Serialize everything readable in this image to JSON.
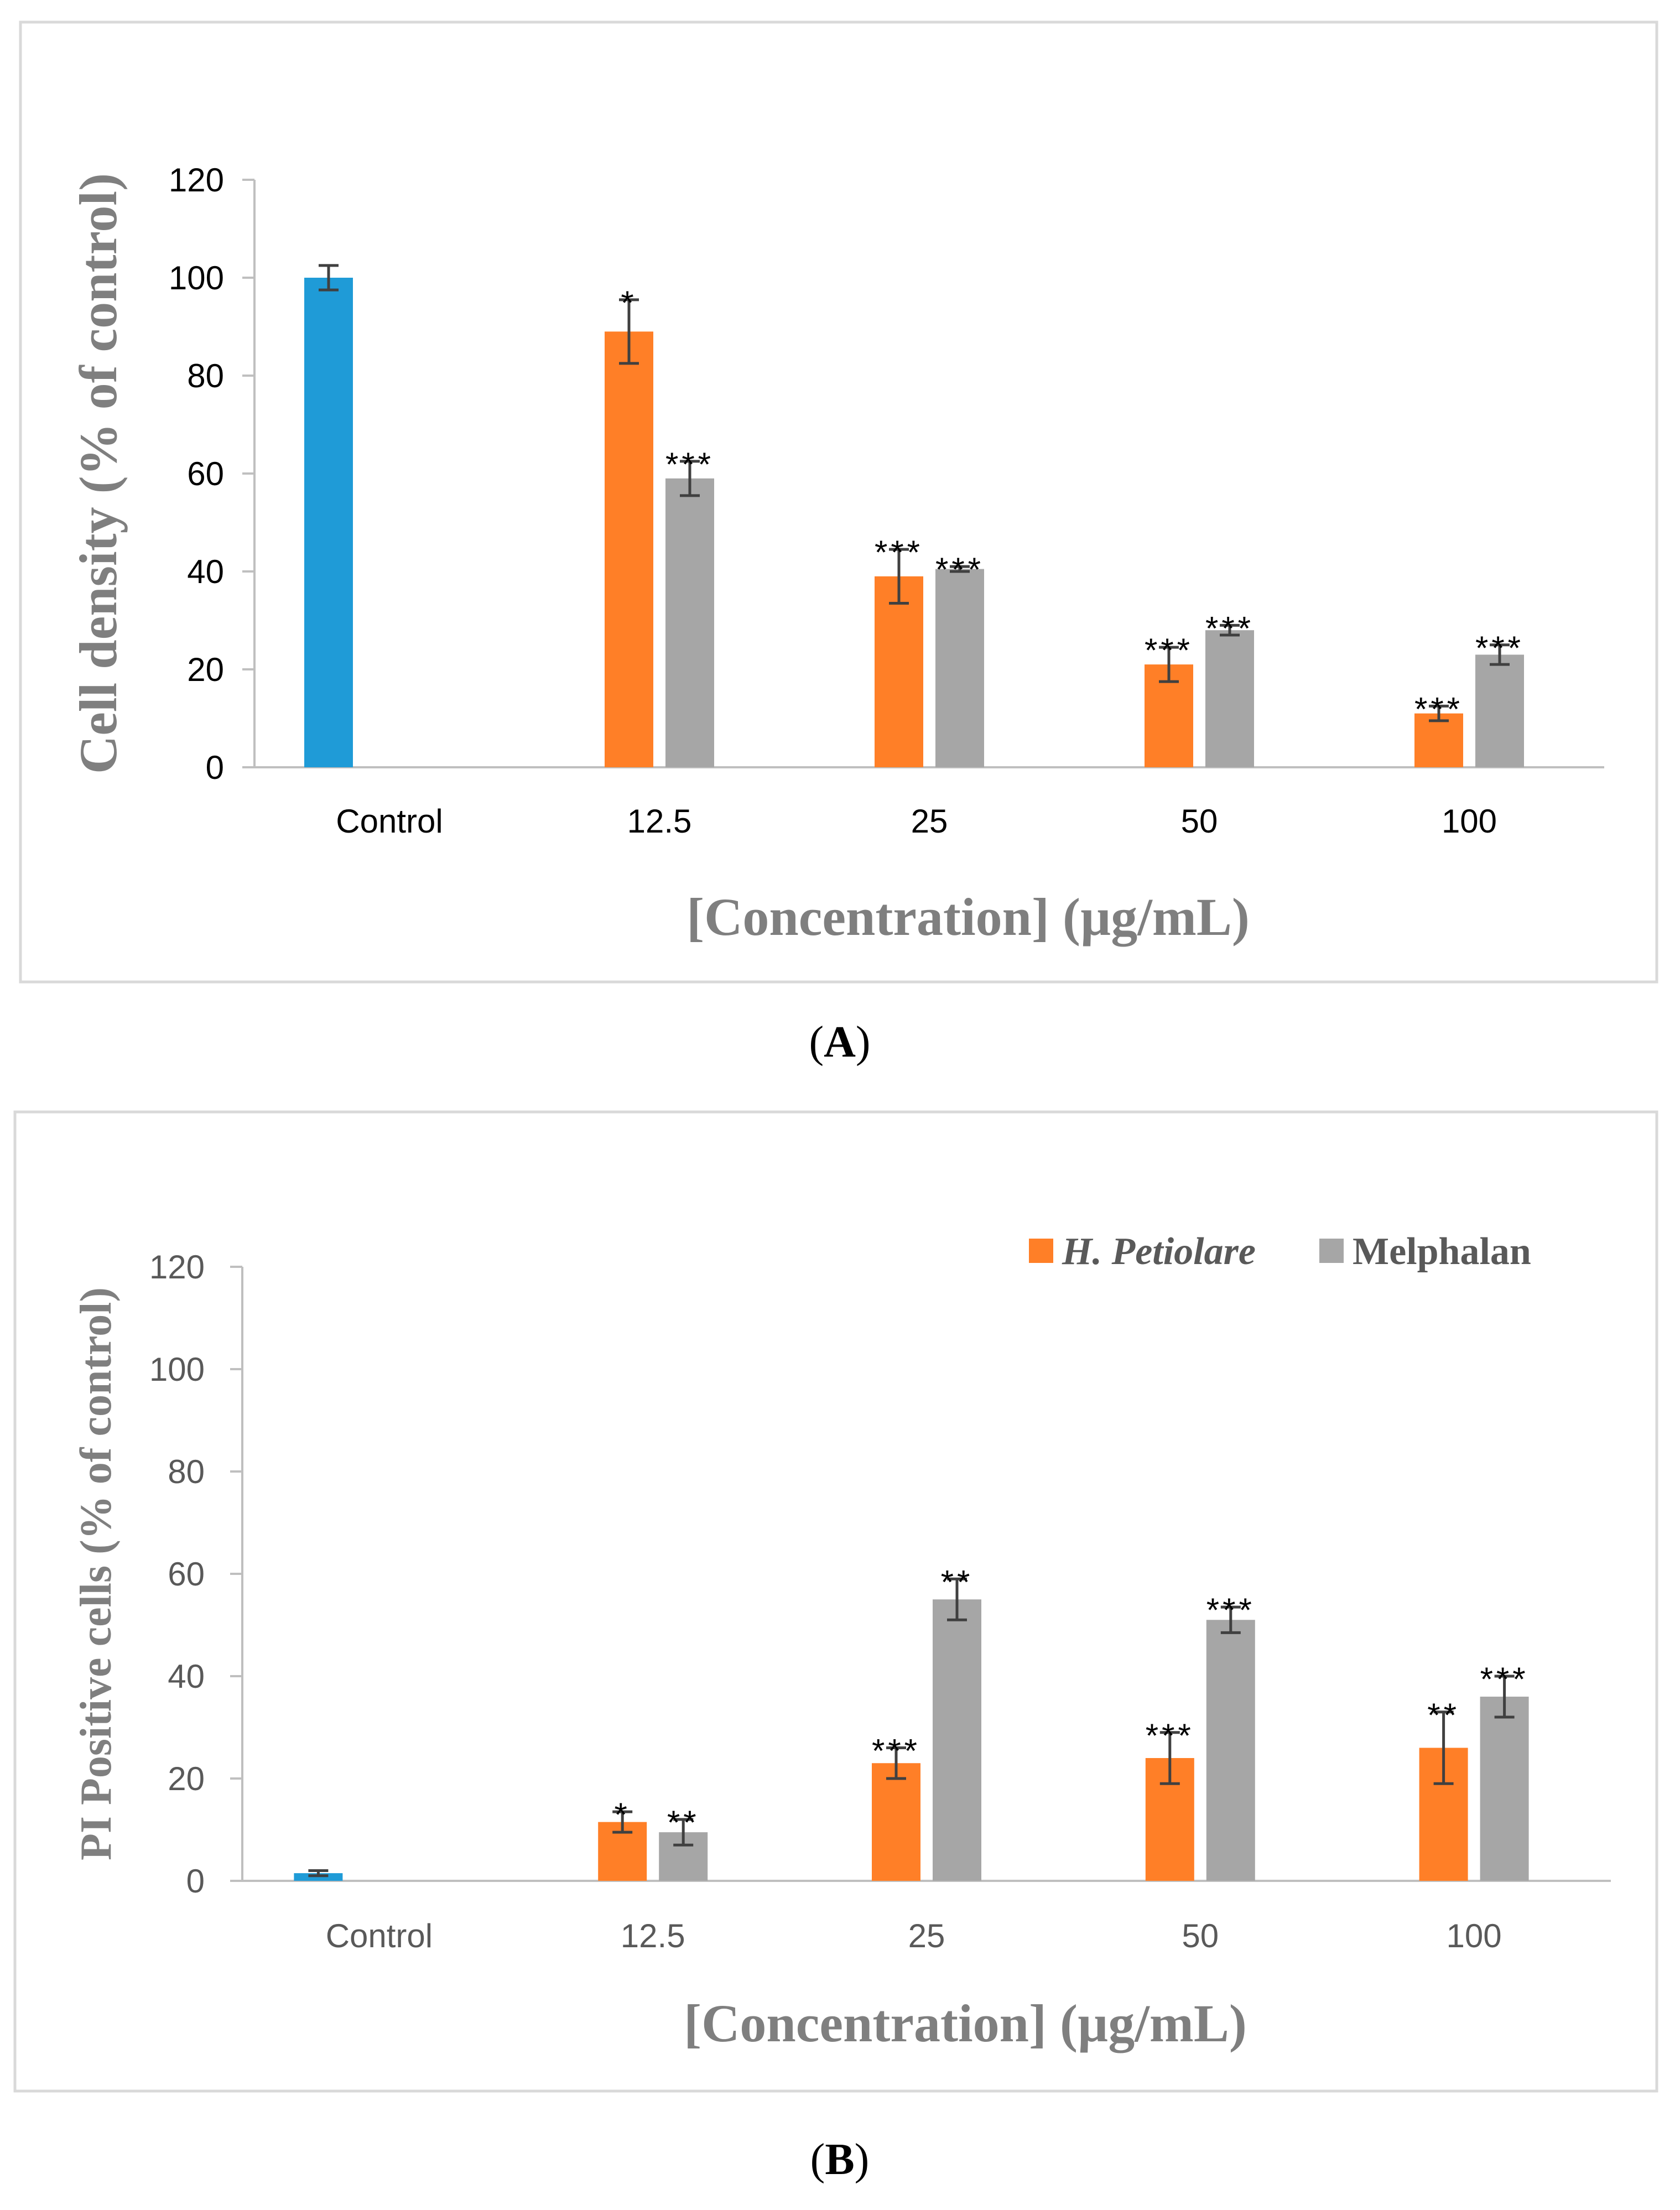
{
  "chart_data": [
    {
      "type": "bar",
      "panel_label": "A",
      "categories": [
        "Control",
        "12.5",
        "25",
        "50",
        "100"
      ],
      "xlabel": "[Concentration]  (µg/mL)",
      "ylabel": "Cell density (% of control)",
      "ylim": [
        0,
        120
      ],
      "yticks": [
        "0",
        "20",
        "40",
        "60",
        "80",
        "100",
        "120"
      ],
      "series": [
        {
          "name": "Control",
          "color": "#1f9bd7",
          "values": [
            100,
            null,
            null,
            null,
            null
          ],
          "errors": [
            2.5,
            null,
            null,
            null,
            null
          ],
          "sig": [
            "",
            "",
            "",
            "",
            ""
          ]
        },
        {
          "name": "H. Petiolare",
          "color": "#ff7f27",
          "values": [
            null,
            89,
            39,
            21,
            11
          ],
          "errors": [
            null,
            6.5,
            5.5,
            3.5,
            1.5
          ],
          "sig": [
            "",
            "*",
            "***",
            "***",
            "***"
          ]
        },
        {
          "name": "Melphalan",
          "color": "#a6a6a6",
          "values": [
            null,
            59,
            40.5,
            28,
            23
          ],
          "errors": [
            null,
            3.5,
            0.5,
            1,
            2
          ],
          "sig": [
            "",
            "***",
            "***",
            "***",
            "***"
          ]
        }
      ]
    },
    {
      "type": "bar",
      "panel_label": "B",
      "categories": [
        "Control",
        "12.5",
        "25",
        "50",
        "100"
      ],
      "xlabel": "[Concentration] (µg/mL)",
      "ylabel": "PI Positive cells (% of control)",
      "ylim": [
        0,
        120
      ],
      "yticks": [
        "0",
        "20",
        "40",
        "60",
        "80",
        "100",
        "120"
      ],
      "legend": [
        "H. Petiolare",
        "Melphalan"
      ],
      "series": [
        {
          "name": "Control",
          "color": "#1f9bd7",
          "values": [
            1.5,
            null,
            null,
            null,
            null
          ],
          "errors": [
            0.5,
            null,
            null,
            null,
            null
          ],
          "sig": [
            "",
            "",
            "",
            "",
            ""
          ]
        },
        {
          "name": "H. Petiolare",
          "color": "#ff7f27",
          "values": [
            null,
            11.5,
            23,
            24,
            26
          ],
          "errors": [
            null,
            2,
            3,
            5,
            7
          ],
          "sig": [
            "",
            "*",
            "***",
            "***",
            "**"
          ]
        },
        {
          "name": "Melphalan",
          "color": "#a6a6a6",
          "values": [
            null,
            9.5,
            55,
            51,
            36
          ],
          "errors": [
            null,
            2.5,
            4,
            2.5,
            4
          ],
          "sig": [
            "",
            "**",
            "**",
            "***",
            "***"
          ]
        }
      ]
    }
  ]
}
